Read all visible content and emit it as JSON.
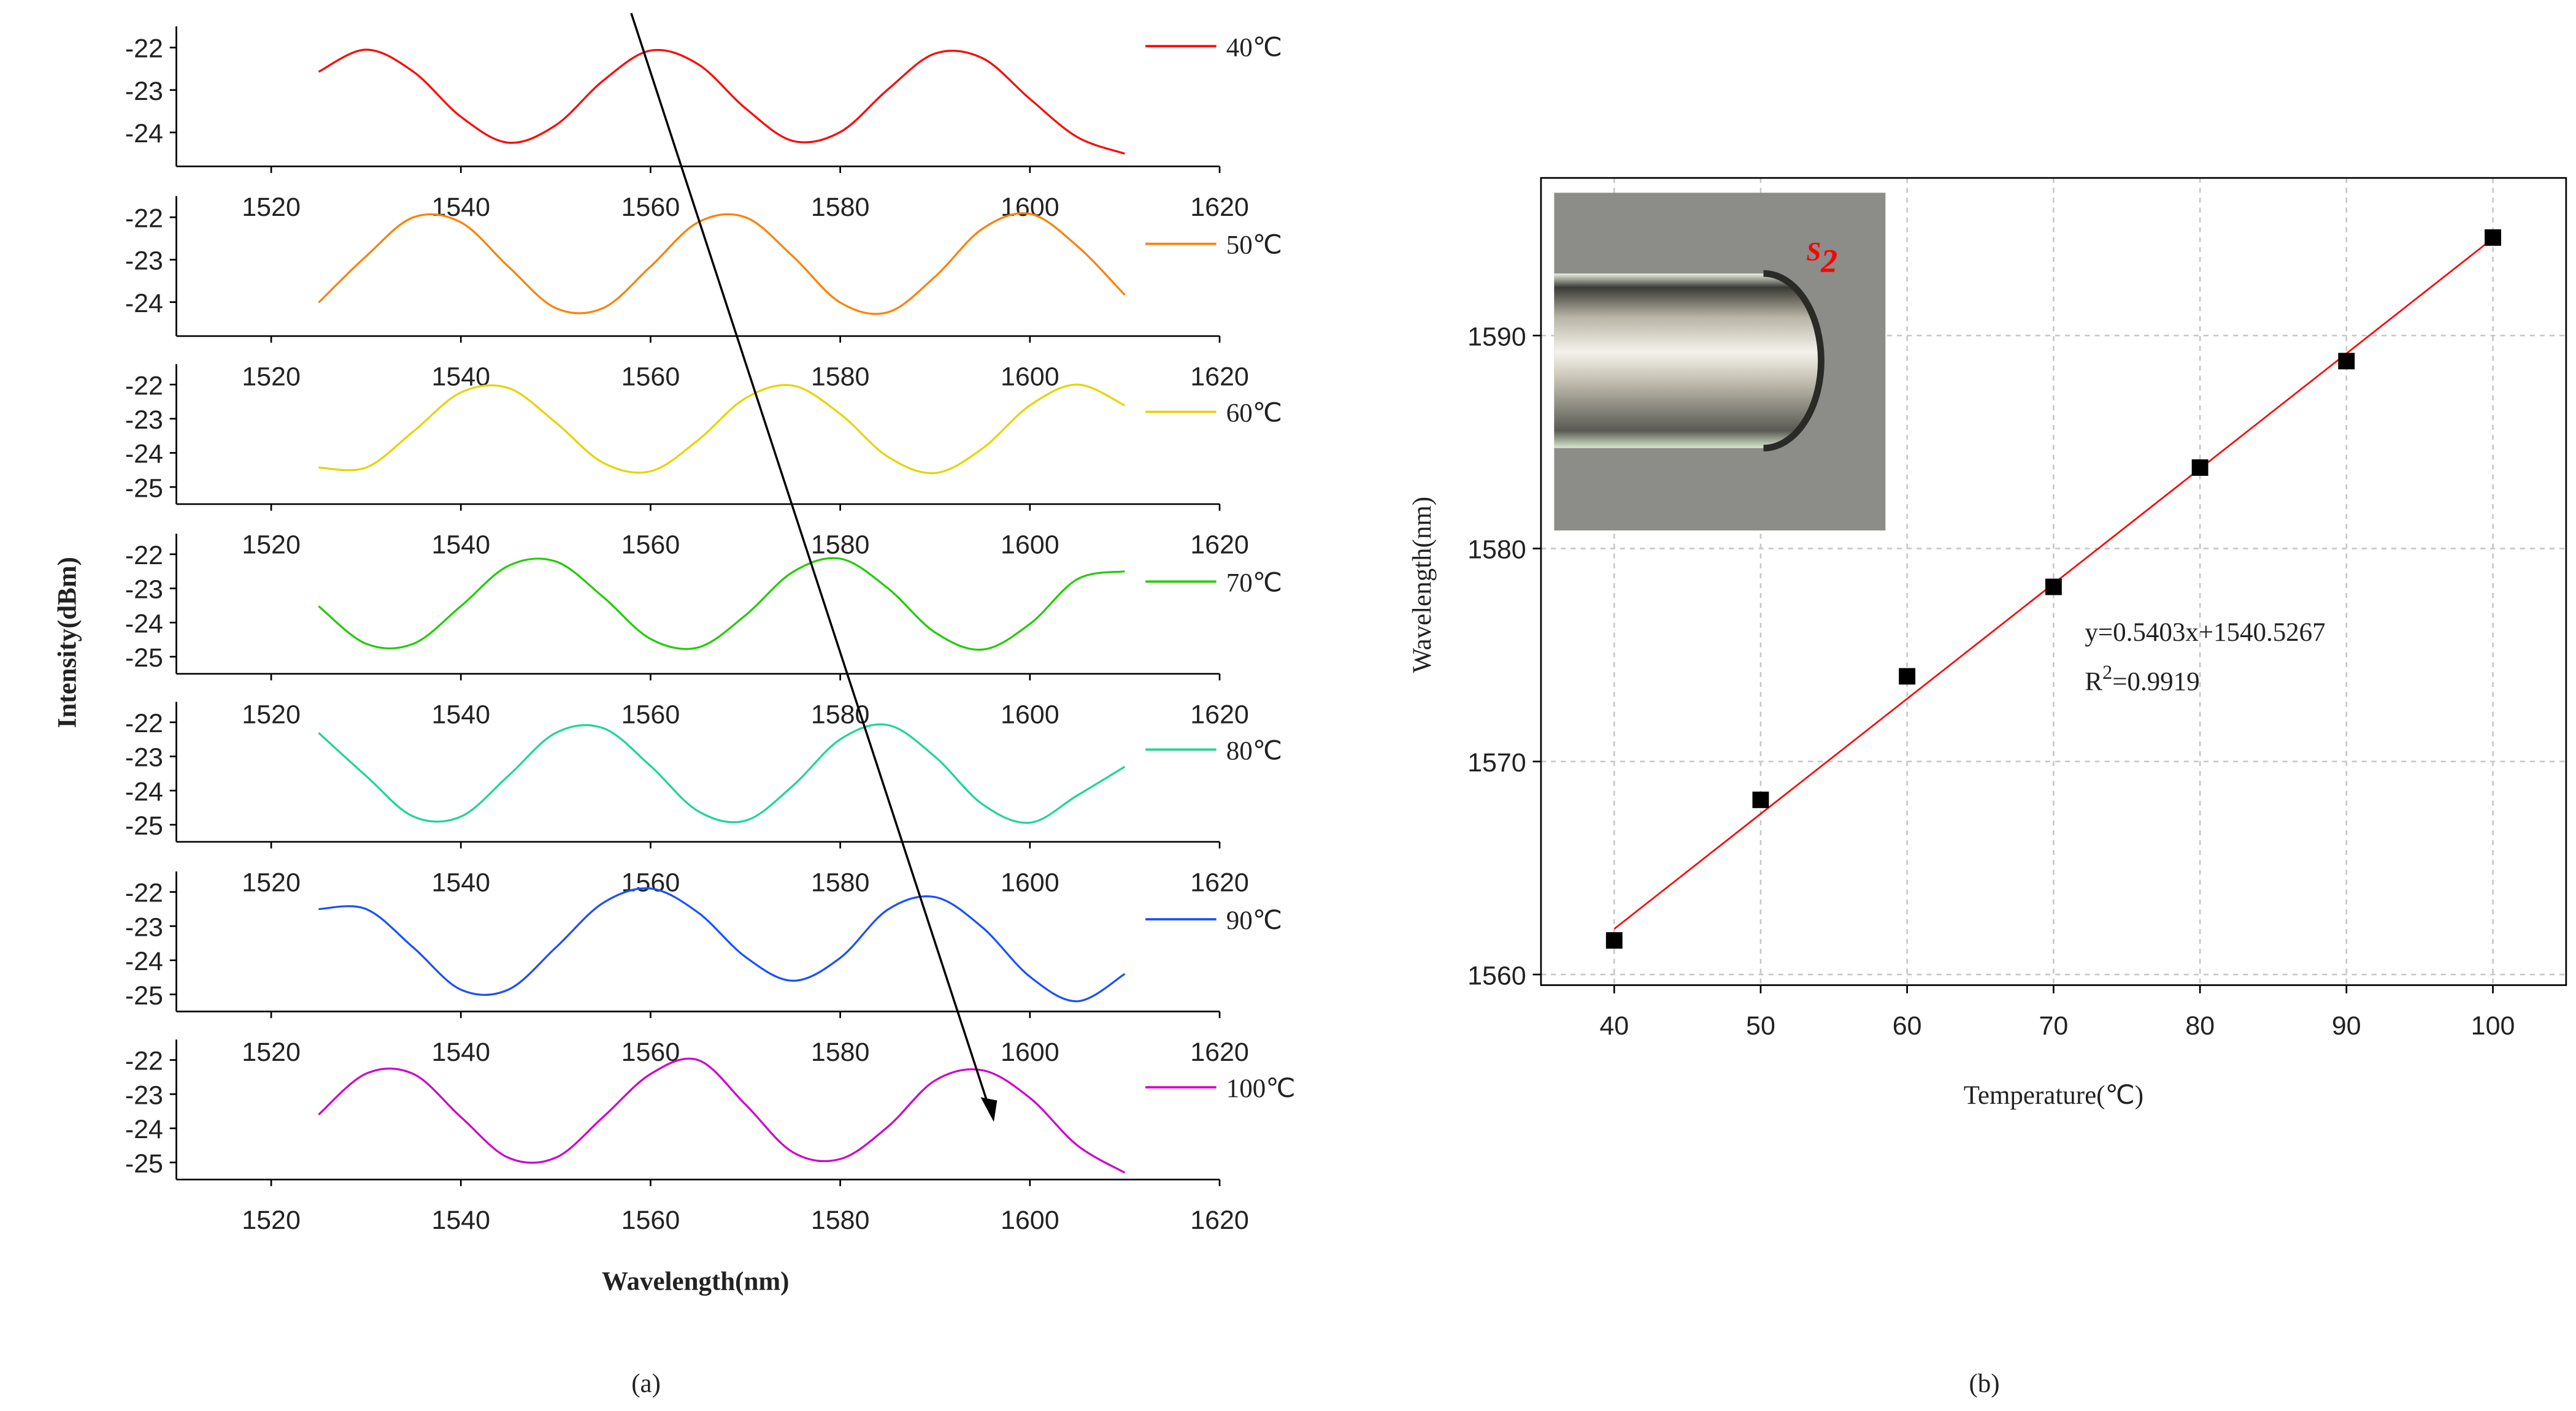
{
  "chart_data": [
    {
      "type": "line",
      "x": [
        1525,
        1530,
        1535,
        1540,
        1545,
        1550,
        1555,
        1560,
        1565,
        1570,
        1575,
        1580,
        1585,
        1590,
        1595,
        1600,
        1605,
        1610
      ],
      "series": [
        {
          "name": "40℃",
          "color": "#ff0000",
          "values": [
            -22.57,
            -22.05,
            -22.57,
            -23.63,
            -24.24,
            -23.83,
            -22.78,
            -22.07,
            -22.39,
            -23.43,
            -24.2,
            -23.99,
            -22.99,
            -22.14,
            -22.25,
            -23.21,
            -24.11,
            -24.5
          ]
        }
      ],
      "xlim": [
        1510,
        1620
      ],
      "xticks": [
        1520,
        1540,
        1560,
        1580,
        1600,
        1620
      ],
      "ylim": [
        -24.8,
        -21.5
      ],
      "yticks": [
        -22,
        -23,
        -24
      ]
    },
    {
      "type": "line",
      "x": [
        1525,
        1530,
        1535,
        1540,
        1545,
        1550,
        1555,
        1560,
        1565,
        1570,
        1575,
        1580,
        1585,
        1590,
        1595,
        1600,
        1605,
        1610
      ],
      "series": [
        {
          "name": "50℃",
          "color": "#ff8000",
          "values": [
            -24.01,
            -22.92,
            -22.0,
            -22.12,
            -23.16,
            -24.14,
            -24.14,
            -23.16,
            -22.12,
            -22.0,
            -22.92,
            -24.01,
            -24.24,
            -23.4,
            -22.27,
            -21.92,
            -22.68,
            -23.83
          ]
        }
      ],
      "xlim": [
        1510,
        1620
      ],
      "xticks": [
        1520,
        1540,
        1560,
        1580,
        1600,
        1620
      ],
      "ylim": [
        -24.8,
        -21.5
      ],
      "yticks": [
        -22,
        -23,
        -24
      ]
    },
    {
      "type": "line",
      "x": [
        1525,
        1530,
        1535,
        1540,
        1545,
        1550,
        1555,
        1560,
        1565,
        1570,
        1575,
        1580,
        1585,
        1590,
        1595,
        1600,
        1605,
        1610
      ],
      "series": [
        {
          "name": "60℃",
          "color": "#e6d400",
          "values": [
            -24.43,
            -24.43,
            -23.37,
            -22.23,
            -22.1,
            -23.11,
            -24.29,
            -24.54,
            -23.63,
            -22.4,
            -22.03,
            -22.86,
            -24.11,
            -24.59,
            -23.87,
            -22.61,
            -22.0,
            -22.61
          ]
        }
      ],
      "xlim": [
        1510,
        1620
      ],
      "xticks": [
        1520,
        1540,
        1560,
        1580,
        1600,
        1620
      ],
      "ylim": [
        -25.5,
        -21.4
      ],
      "yticks": [
        -22,
        -23,
        -24,
        -25
      ]
    },
    {
      "type": "line",
      "x": [
        1525,
        1530,
        1535,
        1540,
        1545,
        1550,
        1555,
        1560,
        1565,
        1570,
        1575,
        1580,
        1585,
        1590,
        1595,
        1600,
        1605,
        1610
      ],
      "series": [
        {
          "name": "70℃",
          "color": "#22cc00",
          "values": [
            -23.52,
            -24.62,
            -24.62,
            -23.52,
            -22.34,
            -22.21,
            -23.25,
            -24.48,
            -24.73,
            -23.79,
            -22.52,
            -22.13,
            -22.99,
            -24.29,
            -24.79,
            -24.04,
            -22.73,
            -22.5
          ]
        }
      ],
      "xlim": [
        1510,
        1620
      ],
      "xticks": [
        1520,
        1540,
        1560,
        1580,
        1600,
        1620
      ],
      "ylim": [
        -25.5,
        -21.4
      ],
      "yticks": [
        -22,
        -23,
        -24,
        -25
      ],
      "ylabel": "Intensity(dBm)"
    },
    {
      "type": "line",
      "x": [
        1525,
        1530,
        1535,
        1540,
        1545,
        1550,
        1555,
        1560,
        1565,
        1570,
        1575,
        1580,
        1585,
        1590,
        1595,
        1600,
        1605,
        1610
      ],
      "series": [
        {
          "name": "80℃",
          "color": "#1fd49a",
          "values": [
            -22.31,
            -23.57,
            -24.76,
            -24.76,
            -23.57,
            -22.31,
            -22.17,
            -23.28,
            -24.6,
            -24.88,
            -23.86,
            -22.5,
            -22.08,
            -23.01,
            -24.4,
            -24.94,
            -24.14,
            -23.3
          ]
        }
      ],
      "xlim": [
        1510,
        1620
      ],
      "xticks": [
        1520,
        1540,
        1560,
        1580,
        1600,
        1620
      ],
      "ylim": [
        -25.5,
        -21.4
      ],
      "yticks": [
        -22,
        -23,
        -24,
        -25
      ]
    },
    {
      "type": "line",
      "x": [
        1525,
        1530,
        1535,
        1540,
        1545,
        1550,
        1555,
        1560,
        1565,
        1570,
        1575,
        1580,
        1585,
        1590,
        1595,
        1600,
        1605,
        1610
      ],
      "series": [
        {
          "name": "90℃",
          "color": "#1a4fff",
          "values": [
            -22.5,
            -22.5,
            -23.63,
            -24.86,
            -24.86,
            -23.63,
            -22.32,
            -21.9,
            -22.6,
            -23.9,
            -24.6,
            -23.93,
            -22.52,
            -22.15,
            -23.04,
            -24.48,
            -25.2,
            -24.4
          ]
        }
      ],
      "xlim": [
        1510,
        1620
      ],
      "xticks": [
        1520,
        1540,
        1560,
        1580,
        1600,
        1620
      ],
      "ylim": [
        -25.5,
        -21.4
      ],
      "yticks": [
        -22,
        -23,
        -24,
        -25
      ]
    },
    {
      "type": "line",
      "x": [
        1525,
        1530,
        1535,
        1540,
        1545,
        1550,
        1555,
        1560,
        1565,
        1570,
        1575,
        1580,
        1585,
        1590,
        1595,
        1600,
        1605,
        1610
      ],
      "series": [
        {
          "name": "100℃",
          "color": "#cc00cc",
          "values": [
            -23.6,
            -22.4,
            -22.41,
            -23.67,
            -24.86,
            -24.86,
            -23.67,
            -22.41,
            -22.0,
            -23.3,
            -24.7,
            -24.9,
            -23.96,
            -22.6,
            -22.3,
            -23.11,
            -24.5,
            -25.3
          ]
        }
      ],
      "xlim": [
        1510,
        1620
      ],
      "xticks": [
        1520,
        1540,
        1560,
        1580,
        1600,
        1620
      ],
      "ylim": [
        -25.5,
        -21.4
      ],
      "yticks": [
        -22,
        -23,
        -24,
        -25
      ],
      "xlabel": "Wavelength(nm)",
      "panel_label": "(a)"
    },
    {
      "type": "scatter",
      "x": [
        40,
        50,
        60,
        70,
        80,
        90,
        100
      ],
      "values": [
        1561.6,
        1568.2,
        1574.0,
        1578.2,
        1583.8,
        1588.8,
        1594.6
      ],
      "color": "#000000",
      "fit": {
        "x": [
          40,
          100
        ],
        "values": [
          1562.14,
          1594.56
        ],
        "color": "#ff0000"
      },
      "xlim": [
        35,
        105
      ],
      "xticks": [
        40,
        50,
        60,
        70,
        80,
        90,
        100
      ],
      "ylim": [
        1559.5,
        1597.4
      ],
      "yticks": [
        1560,
        1570,
        1580,
        1590
      ],
      "grid": true,
      "xlabel": "Temperature(℃)",
      "ylabel": "Wavelength(nm)",
      "annotation": "y=0.5403x+1540.5267",
      "r2": {
        "text": "R",
        "sup": "2",
        "rest": "=0.9919"
      },
      "inset_label": {
        "text": "S",
        "sub": "2"
      },
      "panel_label": "(b)"
    }
  ]
}
